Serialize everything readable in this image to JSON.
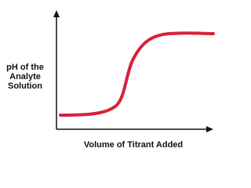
{
  "y_axis_label": {
    "lines": [
      "pH of the",
      "Analyte",
      "Solution"
    ]
  },
  "x_axis_label": "Volume of Titrant Added"
}
